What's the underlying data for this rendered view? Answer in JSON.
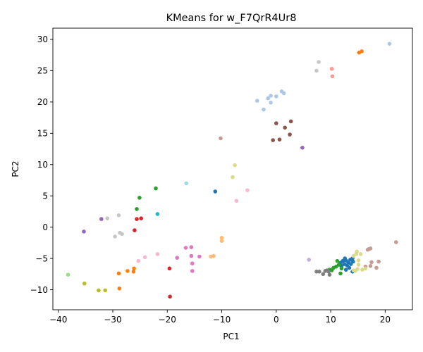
{
  "chart_data": {
    "type": "scatter",
    "title": "KMeans for w_F7QrR4Ur8",
    "xlabel": "PC1",
    "ylabel": "PC2",
    "xlim": [
      -41,
      25
    ],
    "ylim": [
      -13.2,
      31.8
    ],
    "xticks": [
      -40,
      -30,
      -20,
      -10,
      0,
      10,
      20
    ],
    "yticks": [
      -10,
      -5,
      0,
      5,
      10,
      15,
      20,
      25,
      30
    ],
    "xtick_labels": [
      "−40",
      "−30",
      "−20",
      "−10",
      "0",
      "10",
      "20"
    ],
    "ytick_labels": [
      "−10",
      "−5",
      "0",
      "5",
      "10",
      "15",
      "20",
      "25",
      "30"
    ],
    "grid": false,
    "legend": "none",
    "clusters": [
      {
        "color": "#1f77b4",
        "points": [
          [
            12.2,
            -5.4
          ],
          [
            12.8,
            -5.3
          ],
          [
            13.2,
            -5.6
          ],
          [
            13.6,
            -5.2
          ],
          [
            14.0,
            -5.0
          ],
          [
            12.5,
            -5.9
          ],
          [
            13.0,
            -6.1
          ],
          [
            12.0,
            -6.2
          ],
          [
            13.4,
            -6.5
          ],
          [
            12.8,
            -6.8
          ],
          [
            14.1,
            -5.5
          ],
          [
            11.8,
            -5.7
          ],
          [
            -11.2,
            5.7
          ],
          [
            14.0,
            -7.1
          ],
          [
            12.6,
            -5.0
          ],
          [
            13.7,
            -5.9
          ]
        ]
      },
      {
        "color": "#aec7e8",
        "points": [
          [
            -1.5,
            20.6
          ],
          [
            -1.0,
            21.0
          ],
          [
            0.0,
            20.9
          ],
          [
            1.0,
            21.7
          ],
          [
            1.4,
            21.4
          ],
          [
            -2.3,
            18.8
          ],
          [
            -3.5,
            20.2
          ],
          [
            -1.0,
            19.9
          ],
          [
            20.8,
            29.3
          ]
        ]
      },
      {
        "color": "#ff7f0e",
        "points": [
          [
            15.2,
            27.9
          ],
          [
            15.7,
            28.1
          ],
          [
            -27.3,
            -7.0
          ],
          [
            -26.1,
            -6.6
          ],
          [
            -26.2,
            -7.1
          ],
          [
            -28.9,
            -7.4
          ],
          [
            -28.8,
            -9.8
          ]
        ]
      },
      {
        "color": "#ffbb78",
        "points": [
          [
            -10.0,
            -1.7
          ],
          [
            -10.0,
            -2.2
          ],
          [
            -12.0,
            -4.7
          ],
          [
            -11.5,
            -4.6
          ]
        ]
      },
      {
        "color": "#2ca02c",
        "points": [
          [
            -25.1,
            4.7
          ],
          [
            -25.6,
            2.9
          ],
          [
            -22.1,
            6.2
          ],
          [
            9.8,
            -6.8
          ],
          [
            10.5,
            -6.5
          ],
          [
            11.0,
            -6.3
          ],
          [
            11.5,
            -6.0
          ],
          [
            11.2,
            -5.4
          ],
          [
            10.2,
            -6.9
          ],
          [
            11.8,
            -7.4
          ],
          [
            12.0,
            -6.6
          ]
        ]
      },
      {
        "color": "#98df8a",
        "points": [
          [
            -38.2,
            -7.6
          ]
        ]
      },
      {
        "color": "#d62728",
        "points": [
          [
            -25.6,
            1.3
          ],
          [
            -24.8,
            1.4
          ],
          [
            -26.0,
            -0.5
          ],
          [
            -19.6,
            -6.6
          ],
          [
            -19.5,
            -11.1
          ]
        ]
      },
      {
        "color": "#ff9896",
        "points": [
          [
            10.2,
            25.3
          ],
          [
            10.3,
            24.1
          ]
        ]
      },
      {
        "color": "#9467bd",
        "points": [
          [
            -35.3,
            -0.7
          ],
          [
            -32.1,
            1.3
          ],
          [
            4.8,
            12.7
          ]
        ]
      },
      {
        "color": "#c5b0d5",
        "points": [
          [
            6.0,
            -5.2
          ]
        ]
      },
      {
        "color": "#8c564b",
        "points": [
          [
            0.0,
            16.6
          ],
          [
            2.7,
            16.9
          ],
          [
            1.6,
            15.9
          ],
          [
            2.5,
            14.8
          ],
          [
            -0.6,
            13.9
          ],
          [
            0.6,
            14.0
          ]
        ]
      },
      {
        "color": "#c49c94",
        "points": [
          [
            -10.2,
            14.2
          ],
          [
            16.8,
            -3.6
          ],
          [
            17.3,
            -3.4
          ],
          [
            18.8,
            -5.5
          ],
          [
            17.5,
            -5.6
          ],
          [
            17.3,
            -6.2
          ],
          [
            18.4,
            -6.5
          ],
          [
            22.0,
            -2.4
          ],
          [
            16.4,
            -6.3
          ],
          [
            17.0,
            -3.5
          ]
        ]
      },
      {
        "color": "#e377c2",
        "points": [
          [
            -16.6,
            -3.3
          ],
          [
            -15.6,
            -3.2
          ],
          [
            -15.6,
            -4.6
          ],
          [
            -14.1,
            -4.7
          ],
          [
            -15.4,
            -5.8
          ],
          [
            -15.4,
            -7.0
          ],
          [
            -18.2,
            -4.9
          ]
        ]
      },
      {
        "color": "#f7b6d2",
        "points": [
          [
            -21.8,
            -4.3
          ],
          [
            -24.1,
            -4.8
          ],
          [
            -25.3,
            -5.4
          ],
          [
            -5.3,
            5.9
          ],
          [
            -7.3,
            4.2
          ]
        ]
      },
      {
        "color": "#7f7f7f",
        "points": [
          [
            7.4,
            -7.1
          ],
          [
            7.9,
            -7.1
          ],
          [
            8.6,
            -7.5
          ],
          [
            9.0,
            -7.0
          ],
          [
            9.6,
            -7.1
          ],
          [
            9.8,
            -7.6
          ],
          [
            9.3,
            -6.9
          ]
        ]
      },
      {
        "color": "#c7c7c7",
        "points": [
          [
            -28.9,
            1.9
          ],
          [
            -31.0,
            1.4
          ],
          [
            -28.3,
            -1.1
          ],
          [
            -28.7,
            -0.9
          ],
          [
            -29.6,
            -1.5
          ],
          [
            7.8,
            26.4
          ],
          [
            7.4,
            25.0
          ]
        ]
      },
      {
        "color": "#bcbd22",
        "points": [
          [
            -35.2,
            -9.0
          ],
          [
            -32.6,
            -10.1
          ],
          [
            -31.4,
            -10.1
          ]
        ]
      },
      {
        "color": "#dbdb8d",
        "points": [
          [
            -7.6,
            9.9
          ],
          [
            -8.0,
            8.0
          ],
          [
            14.2,
            -4.6
          ],
          [
            14.7,
            -4.3
          ],
          [
            15.1,
            -5.3
          ],
          [
            15.1,
            -6.0
          ],
          [
            14.9,
            -6.7
          ],
          [
            15.8,
            -6.8
          ],
          [
            16.4,
            -6.6
          ],
          [
            14.5,
            -7.0
          ],
          [
            14.2,
            -6.9
          ],
          [
            15.5,
            -4.3
          ],
          [
            14.8,
            -3.9
          ]
        ]
      },
      {
        "color": "#17becf",
        "points": [
          [
            -21.8,
            2.1
          ]
        ]
      },
      {
        "color": "#9edae5",
        "points": [
          [
            -16.5,
            7.0
          ]
        ]
      }
    ]
  }
}
